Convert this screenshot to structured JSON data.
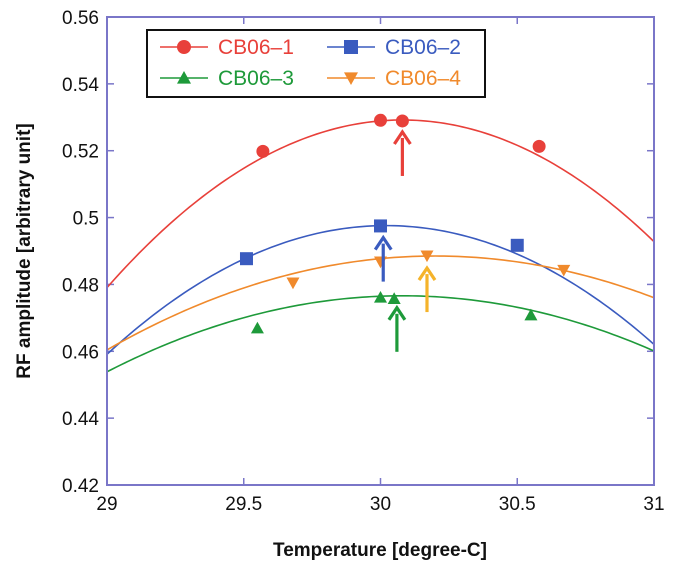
{
  "chart_data": {
    "type": "line",
    "xlabel": "Temperature [degree-C]",
    "ylabel": "RF amplitude [arbitrary unit]",
    "xlim": [
      29,
      31
    ],
    "ylim": [
      0.42,
      0.56
    ],
    "xticks": [
      "29",
      "29.5",
      "30",
      "30.5",
      "31"
    ],
    "yticks": [
      "0.42",
      "0.44",
      "0.46",
      "0.48",
      "0.5",
      "0.52",
      "0.54",
      "0.56"
    ],
    "xtick_values": [
      29,
      29.5,
      30,
      30.5,
      31
    ],
    "ytick_values": [
      0.42,
      0.44,
      0.46,
      0.48,
      0.5,
      0.52,
      0.54,
      0.56
    ],
    "grid": false,
    "legend_position": "top-left",
    "series": [
      {
        "name": "CB06–1",
        "color": "#e8403a",
        "marker": "circle",
        "points": [
          [
            29.57,
            0.5198
          ],
          [
            30.0,
            0.5291
          ],
          [
            30.08,
            0.5289
          ],
          [
            30.58,
            0.5213
          ]
        ],
        "curve": {
          "peak_x": 30.08,
          "peak_y": 0.5292,
          "a": 0.043
        },
        "arrow_x": 30.08
      },
      {
        "name": "CB06–2",
        "color": "#3a5bbf",
        "marker": "square",
        "points": [
          [
            29.51,
            0.4877
          ],
          [
            30.0,
            0.4975
          ],
          [
            30.5,
            0.4917
          ]
        ],
        "curve": {
          "peak_x": 30.02,
          "peak_y": 0.4976,
          "a": 0.037
        },
        "arrow_x": 30.01
      },
      {
        "name": "CB06–3",
        "color": "#1e9a3a",
        "marker": "triangle-up",
        "points": [
          [
            29.55,
            0.4669
          ],
          [
            30.0,
            0.4761
          ],
          [
            30.05,
            0.4757
          ],
          [
            30.55,
            0.4708
          ]
        ],
        "curve": {
          "peak_x": 30.08,
          "peak_y": 0.4766,
          "a": 0.0195
        },
        "arrow_x": 30.06
      },
      {
        "name": "CB06–4",
        "color": "#f08a2c",
        "marker": "triangle-down",
        "points": [
          [
            29.68,
            0.4805
          ],
          [
            30.0,
            0.4868
          ],
          [
            30.17,
            0.4886
          ],
          [
            30.67,
            0.4843
          ]
        ],
        "curve": {
          "peak_x": 30.2,
          "peak_y": 0.4885,
          "a": 0.0195
        },
        "arrow_x": 30.17,
        "arrow_color": "#f5b32a"
      }
    ]
  }
}
